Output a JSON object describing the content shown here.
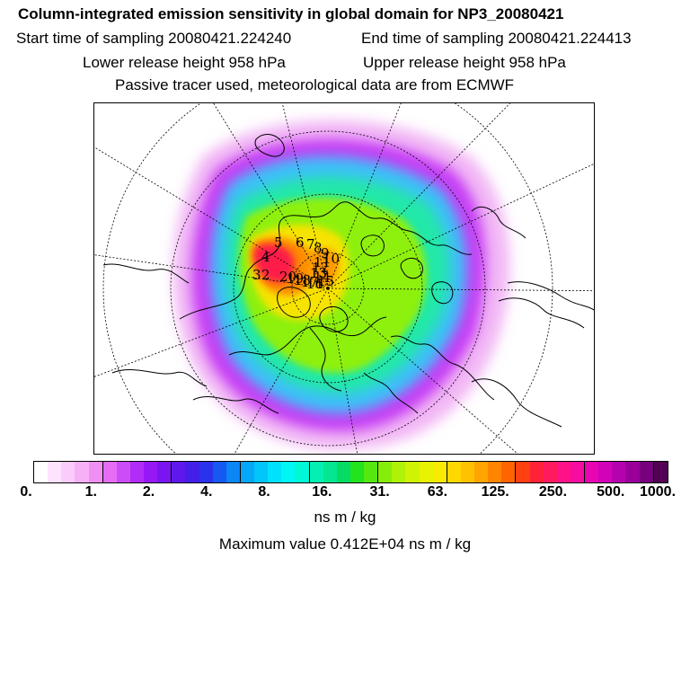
{
  "header": {
    "title": "Column-integrated emission sensitivity in global domain for NP3_20080421",
    "start_label": "Start time of sampling 20080421.224240",
    "end_label": "End time of sampling 20080421.224413",
    "lower_label": "Lower release height  958 hPa",
    "upper_label": "Upper release height  958 hPa",
    "tracer_label": "Passive tracer used, meteorological data are from ECMWF"
  },
  "map": {
    "projection": "north-polar stereographic",
    "markers": [
      "1",
      "2",
      "3",
      "4",
      "5",
      "6",
      "7",
      "8",
      "9",
      "10",
      "11",
      "12",
      "13",
      "14",
      "15",
      "16",
      "17",
      "18",
      "19",
      "20"
    ]
  },
  "colorbar": {
    "colors": [
      "#ffffff",
      "#fde3fd",
      "#fbcbfb",
      "#f6b0f6",
      "#ef8ff3",
      "#e56cf5",
      "#cb4df7",
      "#b12cf7",
      "#9619f5",
      "#7a14f0",
      "#5f18ec",
      "#431fe8",
      "#2a32ec",
      "#1659f2",
      "#0a86f5",
      "#05a7f7",
      "#02c5fa",
      "#00e2fb",
      "#00f6f2",
      "#02f7d6",
      "#03efb4",
      "#04e68f",
      "#06dc63",
      "#23e21e",
      "#55e810",
      "#86ed0b",
      "#b0f108",
      "#cff304",
      "#e7f302",
      "#f8ea00",
      "#ffd800",
      "#ffc100",
      "#ffa400",
      "#ff8500",
      "#ff6400",
      "#ff4010",
      "#ff2238",
      "#ff1a60",
      "#ff1188",
      "#f70ca2",
      "#e806b2",
      "#d202b8",
      "#b601b0",
      "#9a0099",
      "#78007c",
      "#510054"
    ],
    "tick_labels": [
      "0.",
      "1.",
      "2.",
      "4.",
      "8.",
      "16.",
      "31.",
      "63.",
      "125.",
      "250.",
      "500.",
      "1000."
    ],
    "units": "ns m / kg",
    "max_value_label": "Maximum value  0.412E+04 ns m / kg"
  }
}
